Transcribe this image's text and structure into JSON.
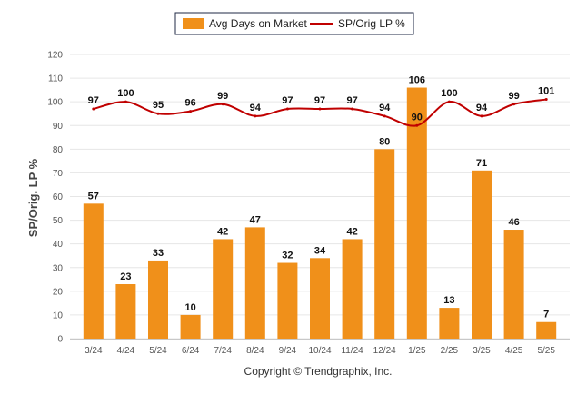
{
  "chart_data": {
    "type": "bar",
    "categories": [
      "3/24",
      "4/24",
      "5/24",
      "6/24",
      "7/24",
      "8/24",
      "9/24",
      "10/24",
      "11/24",
      "12/24",
      "1/25",
      "2/25",
      "3/25",
      "4/25",
      "5/25"
    ],
    "series": [
      {
        "name": "Avg Days on Market",
        "type": "bar",
        "color": "#f0901a",
        "values": [
          57,
          23,
          33,
          10,
          42,
          47,
          32,
          34,
          42,
          80,
          106,
          13,
          71,
          46,
          7
        ]
      },
      {
        "name": "SP/Orig LP %",
        "type": "line",
        "color": "#c00000",
        "values": [
          97,
          100,
          95,
          96,
          99,
          94,
          97,
          97,
          97,
          94,
          90,
          100,
          94,
          99,
          101
        ]
      }
    ],
    "ylabel": "SP/Orig. LP %",
    "ylim": [
      0,
      120
    ],
    "yticks": [
      0,
      10,
      20,
      30,
      40,
      50,
      60,
      70,
      80,
      90,
      100,
      110,
      120
    ],
    "grid": true,
    "legend_position": "top-center"
  },
  "footer": {
    "copyright": "Copyright © Trendgraphix, Inc."
  }
}
